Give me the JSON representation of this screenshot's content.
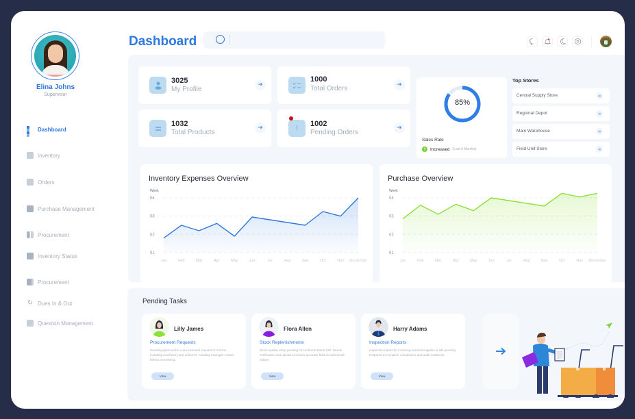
{
  "profile": {
    "name": "Elina Johns",
    "role": "Supervisor"
  },
  "sidebar": {
    "items": [
      {
        "label": "Dashboard",
        "icon": "grid-icon",
        "active": true
      },
      {
        "label": "Inventory",
        "icon": "inventory-icon"
      },
      {
        "label": "Orders",
        "icon": "orders-icon"
      },
      {
        "label": "Purchase Management",
        "icon": "purchase-icon"
      },
      {
        "label": "Procurement",
        "icon": "procurement-icon"
      },
      {
        "label": "Inventory Status",
        "icon": "box-icon"
      },
      {
        "label": "Procurement",
        "icon": "procurement-icon"
      },
      {
        "label": "Dues In & Out",
        "icon": "refresh-icon"
      },
      {
        "label": "Question Management",
        "icon": "question-icon"
      }
    ]
  },
  "header": {
    "title": "Dashboard",
    "search": {
      "placeholder": "",
      "value": ""
    },
    "icons": [
      "chat-icon",
      "bell-icon",
      "moon-icon",
      "settings-icon"
    ]
  },
  "stats": [
    {
      "value": "3025",
      "label": "My Profile",
      "icon": "user-icon"
    },
    {
      "value": "1000",
      "label": "Total Orders",
      "icon": "checklist-icon"
    },
    {
      "value": "1032",
      "label": "Total Products",
      "icon": "list-icon"
    },
    {
      "value": "1002",
      "label": "Pending Orders",
      "icon": "alert-icon",
      "badge": true
    }
  ],
  "sales": {
    "percent": "85%",
    "percent_value": 85,
    "title": "Sales Rate",
    "status": "Increased",
    "period": "(Last 5 Months)",
    "accent": "#2e7de9",
    "status_color": "#7ad13a"
  },
  "top_stores": {
    "title": "Top Stores",
    "items": [
      "Central Supply Store",
      "Regional Depot",
      "Main Warehouse",
      "Field Unit Store"
    ]
  },
  "charts": {
    "inventory": {
      "title": "Inventory Expenses Overview"
    },
    "purchase": {
      "title": "Purchase Overview"
    }
  },
  "chart_data": [
    {
      "type": "area",
      "title": "Inventory Expenses Overview",
      "ylabel": "Week",
      "xlabel": "",
      "categories": [
        "Jan",
        "Feb",
        "Mar",
        "Apr",
        "May",
        "Jun",
        "Jul",
        "Aug",
        "Sep",
        "Oct",
        "Nov",
        "December"
      ],
      "yticks": [
        "01",
        "02",
        "03",
        "04"
      ],
      "ylim": [
        1,
        4
      ],
      "values": [
        1.8,
        2.5,
        2.2,
        2.6,
        1.9,
        2.95,
        2.8,
        2.65,
        2.5,
        3.25,
        3.0,
        4.0
      ],
      "color": "#2e78e0",
      "grid": true
    },
    {
      "type": "area",
      "title": "Purchase Overview",
      "ylabel": "Week",
      "xlabel": "",
      "categories": [
        "Jan",
        "Feb",
        "Mar",
        "Apr",
        "May",
        "Jun",
        "Jul",
        "Aug",
        "Sep",
        "Oct",
        "Nov",
        "December"
      ],
      "yticks": [
        "01",
        "02",
        "03",
        "04"
      ],
      "ylim": [
        1,
        4
      ],
      "values": [
        2.85,
        3.6,
        3.1,
        3.65,
        3.3,
        4.0,
        3.85,
        3.7,
        3.55,
        4.25,
        4.05,
        4.25
      ],
      "color": "#8ee03a",
      "grid": true
    }
  ],
  "pending": {
    "title": "Pending Tasks",
    "tasks": [
      {
        "name": "Lilly James",
        "type": "Procurement Requests",
        "desc": "Pending approval for a procurement request of 3 items, including machinery and uniforms. Awaiting manager review before processing.",
        "button": "View"
      },
      {
        "name": "Flora Allen",
        "type": "Stock Replenishments",
        "desc": "Stock update entry pending for Uniforms Batch #42. Needs verification and upload to ensure accurate field vs authorized values.",
        "button": "View"
      },
      {
        "name": "Harry Adams",
        "type": "Inspection Reports",
        "desc": "Inspection report for incoming medical supplies is still pending. Required to complete compliance and audit readiness",
        "button": "View"
      }
    ],
    "more_icon": "arrow-right-icon"
  }
}
